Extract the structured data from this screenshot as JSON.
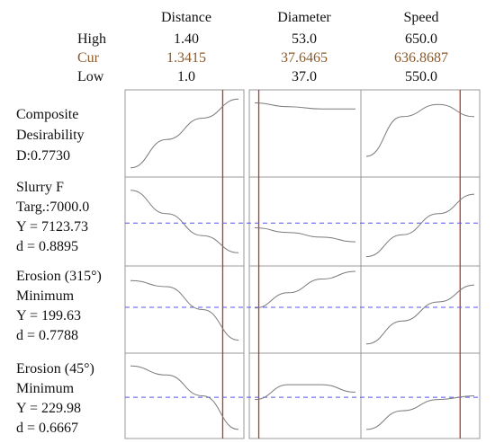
{
  "header": {
    "factors": [
      "Distance",
      "Diameter",
      "Speed"
    ],
    "row_labels": {
      "high": "High",
      "cur": "Cur",
      "low": "Low"
    },
    "high": [
      "1.40",
      "53.0",
      "650.0"
    ],
    "cur": [
      "1.3415",
      "37.6465",
      "636.8687"
    ],
    "low": [
      "1.0",
      "37.0",
      "550.0"
    ]
  },
  "rows": [
    {
      "lines": [
        "Composite",
        "Desirability",
        "D:0.7730"
      ]
    },
    {
      "lines": [
        "Slurry F",
        "Targ.:7000.0",
        "Y = 7123.73",
        "d = 0.8895"
      ]
    },
    {
      "lines": [
        "Erosion (315°)",
        "Minimum",
        "Y = 199.63",
        "d = 0.7788"
      ]
    },
    {
      "lines": [
        "Erosion (45°)",
        "Minimum",
        "Y = 229.98",
        "d = 0.6667"
      ]
    }
  ],
  "colors": {
    "frame": "#999999",
    "curve": "#7a7a7a",
    "current": "#b03a2e",
    "target": "#5555ee"
  },
  "chart_data": {
    "type": "line",
    "factors": [
      {
        "name": "Distance",
        "low": 1.0,
        "high": 1.4,
        "cur": 1.3415
      },
      {
        "name": "Diameter",
        "low": 37.0,
        "high": 53.0,
        "cur": 37.6465
      },
      {
        "name": "Speed",
        "low": 550.0,
        "high": 650.0,
        "cur": 636.8687
      }
    ],
    "responses": [
      {
        "name": "Composite Desirability",
        "value": 0.773,
        "curves": [
          [
            0.05,
            0.42,
            0.7,
            0.95
          ],
          [
            0.9,
            0.85,
            0.82,
            0.82
          ],
          [
            0.2,
            0.72,
            0.88,
            0.72
          ]
        ],
        "ref": null
      },
      {
        "name": "Slurry F",
        "value": 7123.73,
        "curves": [
          [
            0.9,
            0.6,
            0.32,
            0.1
          ],
          [
            0.42,
            0.36,
            0.3,
            0.24
          ],
          [
            0.05,
            0.33,
            0.6,
            0.85
          ]
        ],
        "ref": 0.48
      },
      {
        "name": "Erosion (315°)",
        "value": 199.63,
        "curves": [
          [
            0.88,
            0.8,
            0.5,
            0.1
          ],
          [
            0.52,
            0.72,
            0.9,
            1.0
          ],
          [
            0.05,
            0.35,
            0.6,
            0.82
          ]
        ],
        "ref": 0.53
      },
      {
        "name": "Erosion (45°)",
        "value": 229.98,
        "curves": [
          [
            0.9,
            0.78,
            0.5,
            0.05
          ],
          [
            0.45,
            0.65,
            0.65,
            0.55
          ],
          [
            0.05,
            0.3,
            0.45,
            0.5
          ]
        ],
        "ref": 0.48
      }
    ]
  }
}
